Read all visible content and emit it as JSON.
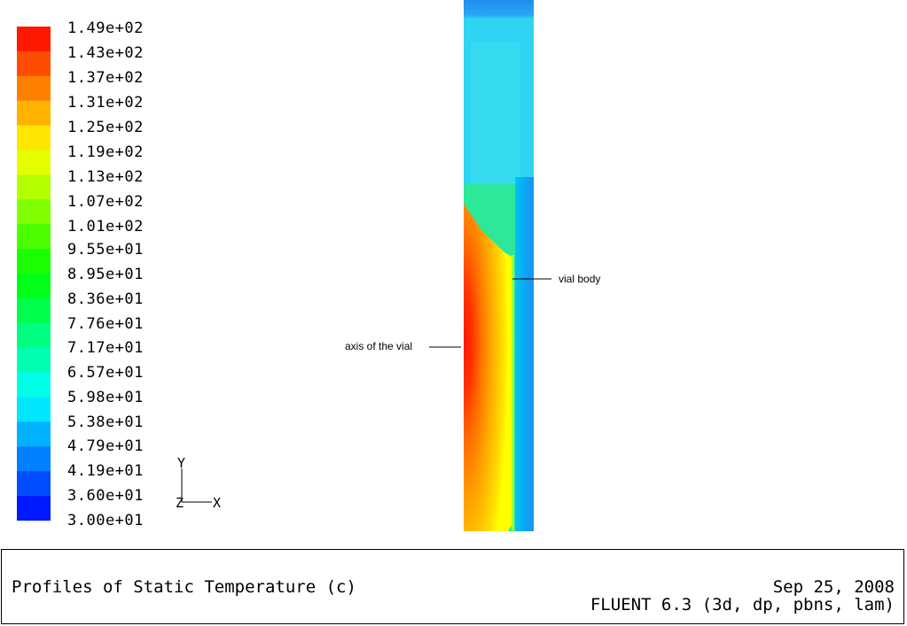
{
  "chart_data": {
    "type": "heatmap",
    "title": "Profiles of Static Temperature (c)",
    "colorbar": {
      "min": 30.0,
      "max": 149.0,
      "tick_labels": [
        "1.49e+02",
        "1.43e+02",
        "1.37e+02",
        "1.31e+02",
        "1.25e+02",
        "1.19e+02",
        "1.13e+02",
        "1.07e+02",
        "1.01e+02",
        "9.55e+01",
        "8.95e+01",
        "8.36e+01",
        "7.76e+01",
        "7.17e+01",
        "6.57e+01",
        "5.98e+01",
        "5.38e+01",
        "4.79e+01",
        "4.19e+01",
        "3.60e+01",
        "3.00e+01"
      ],
      "tick_values": [
        149,
        143,
        137,
        131,
        125,
        119,
        113,
        107,
        101,
        95.5,
        89.5,
        83.6,
        77.6,
        71.7,
        65.7,
        59.8,
        53.8,
        47.9,
        41.9,
        36.0,
        30.0
      ]
    },
    "annotations": [
      {
        "text": "vial body"
      },
      {
        "text": "axis of the vial"
      }
    ],
    "axes_triad": {
      "y": "Y",
      "x": "X",
      "z": "Z"
    }
  },
  "footer": {
    "title": "Profiles of Static Temperature (c)",
    "date": "Sep 25, 2008",
    "solver": "FLUENT 6.3 (3d, dp, pbns, lam)"
  },
  "colors": {
    "max": "#ff0000",
    "mid": "#00ff00",
    "min": "#0000ff",
    "background": "#ffffff"
  }
}
